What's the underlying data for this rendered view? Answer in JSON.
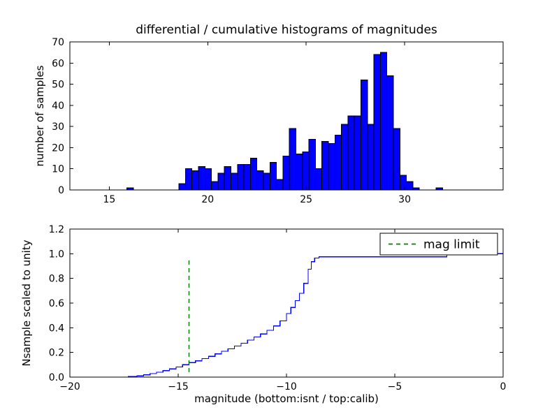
{
  "figure": {
    "background": "#ffffff"
  },
  "chart_data": [
    {
      "type": "bar",
      "title": "differential / cumulative histograms of magnitudes",
      "ylabel": "number of samples",
      "xlabel": "",
      "xlim": [
        13,
        35
      ],
      "ylim": [
        0,
        70
      ],
      "xticks": [
        15,
        20,
        25,
        30
      ],
      "xtick_labels": [
        "15",
        "20",
        "25",
        "30"
      ],
      "yticks": [
        0,
        10,
        20,
        30,
        40,
        50,
        60,
        70
      ],
      "ytick_labels": [
        "0",
        "10",
        "20",
        "30",
        "40",
        "50",
        "60",
        "70"
      ],
      "bar_color": "#0000ff",
      "bar_edge_color": "#000000",
      "bin_width": 0.33,
      "bars": [
        [
          15.9,
          1
        ],
        [
          18.54,
          3
        ],
        [
          18.87,
          10
        ],
        [
          19.2,
          9
        ],
        [
          19.53,
          11
        ],
        [
          19.86,
          10
        ],
        [
          20.19,
          4
        ],
        [
          20.52,
          8
        ],
        [
          20.85,
          11
        ],
        [
          21.18,
          8
        ],
        [
          21.51,
          12
        ],
        [
          21.84,
          12
        ],
        [
          22.17,
          15
        ],
        [
          22.5,
          9
        ],
        [
          22.83,
          8
        ],
        [
          23.16,
          13
        ],
        [
          23.49,
          5
        ],
        [
          23.82,
          16
        ],
        [
          24.15,
          29
        ],
        [
          24.48,
          17
        ],
        [
          24.81,
          18
        ],
        [
          25.14,
          24
        ],
        [
          25.47,
          10
        ],
        [
          25.8,
          23
        ],
        [
          26.13,
          22
        ],
        [
          26.46,
          26
        ],
        [
          26.79,
          31
        ],
        [
          27.12,
          35
        ],
        [
          27.45,
          35
        ],
        [
          27.78,
          52
        ],
        [
          28.11,
          31
        ],
        [
          28.44,
          64
        ],
        [
          28.77,
          65
        ],
        [
          29.1,
          54
        ],
        [
          29.43,
          29
        ],
        [
          29.76,
          7
        ],
        [
          30.09,
          4
        ],
        [
          30.42,
          1
        ],
        [
          31.6,
          1
        ]
      ],
      "grid": false,
      "legend": null
    },
    {
      "type": "line",
      "style": "steps",
      "title": "",
      "ylabel": "Nsample scaled to unity",
      "xlabel": "magnitude (bottom:isnt / top:calib)",
      "xlim": [
        -20,
        0
      ],
      "ylim": [
        0,
        1.2
      ],
      "xticks": [
        -20,
        -15,
        -10,
        -5,
        0
      ],
      "xtick_labels": [
        "−20",
        "−15",
        "−10",
        "−5",
        "0"
      ],
      "yticks": [
        0.0,
        0.2,
        0.4,
        0.6,
        0.8,
        1.0,
        1.2
      ],
      "ytick_labels": [
        "0.0",
        "0.2",
        "0.4",
        "0.6",
        "0.8",
        "1.0",
        "1.2"
      ],
      "line_color": "#0000ff",
      "points": [
        [
          -20.0,
          0.0
        ],
        [
          -17.3,
          0.004
        ],
        [
          -16.9,
          0.01
        ],
        [
          -16.6,
          0.018
        ],
        [
          -16.3,
          0.028
        ],
        [
          -16.0,
          0.04
        ],
        [
          -15.7,
          0.052
        ],
        [
          -15.4,
          0.066
        ],
        [
          -15.1,
          0.082
        ],
        [
          -14.8,
          0.1
        ],
        [
          -14.5,
          0.118
        ],
        [
          -14.2,
          0.132
        ],
        [
          -13.9,
          0.15
        ],
        [
          -13.6,
          0.168
        ],
        [
          -13.3,
          0.188
        ],
        [
          -13.0,
          0.21
        ],
        [
          -12.7,
          0.23
        ],
        [
          -12.4,
          0.252
        ],
        [
          -12.1,
          0.275
        ],
        [
          -11.8,
          0.3
        ],
        [
          -11.5,
          0.325
        ],
        [
          -11.2,
          0.35
        ],
        [
          -10.9,
          0.38
        ],
        [
          -10.6,
          0.415
        ],
        [
          -10.3,
          0.455
        ],
        [
          -10.0,
          0.515
        ],
        [
          -9.8,
          0.565
        ],
        [
          -9.6,
          0.62
        ],
        [
          -9.4,
          0.68
        ],
        [
          -9.2,
          0.76
        ],
        [
          -9.0,
          0.875
        ],
        [
          -8.85,
          0.935
        ],
        [
          -8.7,
          0.965
        ],
        [
          -8.5,
          0.975
        ],
        [
          -2.6,
          0.99
        ],
        [
          -2.4,
          1.0
        ],
        [
          0.0,
          1.0
        ]
      ],
      "vline": {
        "x": -14.5,
        "y0": 0.04,
        "y1": 0.97,
        "color": "#008000",
        "dash": "6,5"
      },
      "legend": {
        "label": "mag limit",
        "position": "upper right",
        "line_color": "#008000",
        "line_dash": "6,5"
      },
      "grid": false
    }
  ]
}
